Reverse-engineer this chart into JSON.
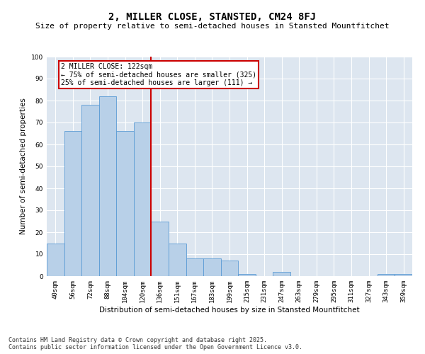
{
  "title": "2, MILLER CLOSE, STANSTED, CM24 8FJ",
  "subtitle": "Size of property relative to semi-detached houses in Stansted Mountfitchet",
  "xlabel": "Distribution of semi-detached houses by size in Stansted Mountfitchet",
  "ylabel": "Number of semi-detached properties",
  "categories": [
    "40sqm",
    "56sqm",
    "72sqm",
    "88sqm",
    "104sqm",
    "120sqm",
    "136sqm",
    "151sqm",
    "167sqm",
    "183sqm",
    "199sqm",
    "215sqm",
    "231sqm",
    "247sqm",
    "263sqm",
    "279sqm",
    "295sqm",
    "311sqm",
    "327sqm",
    "343sqm",
    "359sqm"
  ],
  "values": [
    15,
    66,
    78,
    82,
    66,
    70,
    25,
    15,
    8,
    8,
    7,
    1,
    0,
    2,
    0,
    0,
    0,
    0,
    0,
    1,
    1
  ],
  "bar_color": "#b8d0e8",
  "bar_edge_color": "#5b9bd5",
  "red_line_index": 5.5,
  "annotation_text": "2 MILLER CLOSE: 122sqm\n← 75% of semi-detached houses are smaller (325)\n25% of semi-detached houses are larger (111) →",
  "annotation_box_color": "#ffffff",
  "annotation_box_edge": "#cc0000",
  "red_line_color": "#cc0000",
  "ylim": [
    0,
    100
  ],
  "yticks": [
    0,
    10,
    20,
    30,
    40,
    50,
    60,
    70,
    80,
    90,
    100
  ],
  "background_color": "#dde6f0",
  "footer": "Contains HM Land Registry data © Crown copyright and database right 2025.\nContains public sector information licensed under the Open Government Licence v3.0.",
  "title_fontsize": 10,
  "subtitle_fontsize": 8,
  "xlabel_fontsize": 7.5,
  "ylabel_fontsize": 7.5,
  "tick_fontsize": 6.5,
  "footer_fontsize": 6,
  "annotation_fontsize": 7
}
